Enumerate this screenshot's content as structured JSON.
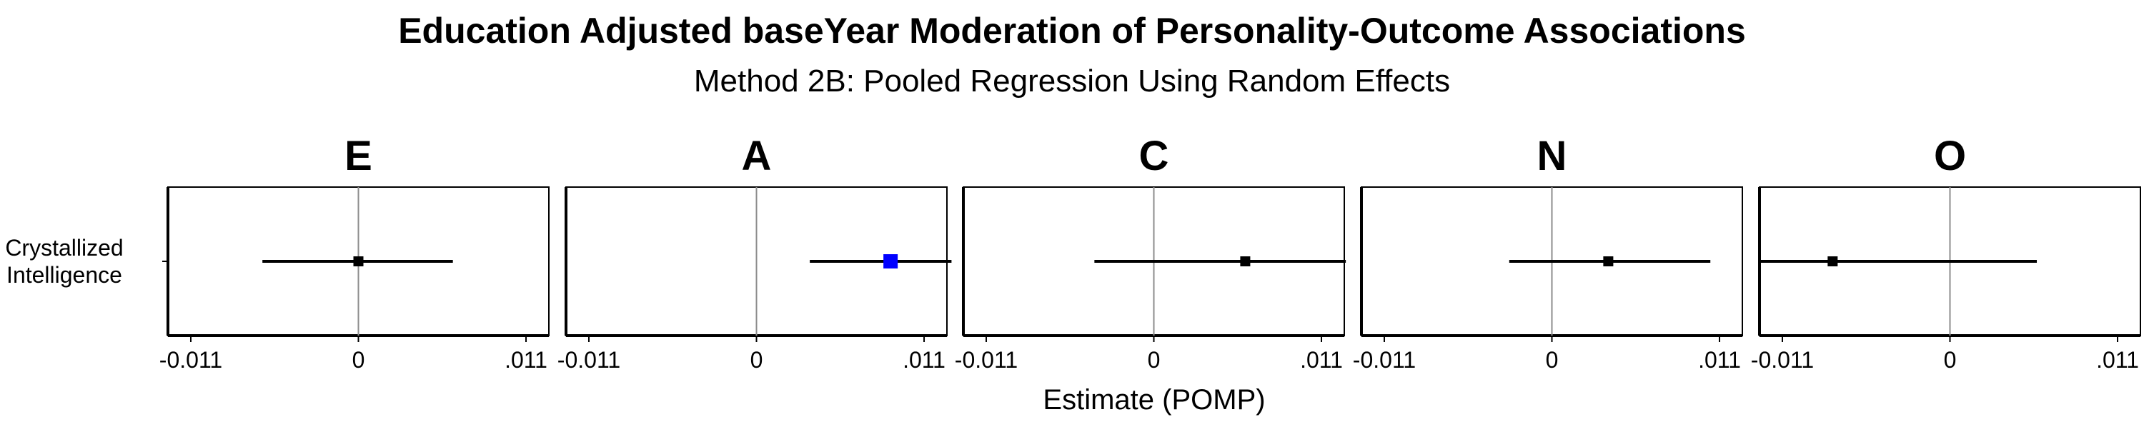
{
  "chart_data": {
    "type": "forest",
    "title": "Education Adjusted baseYear Moderation of Personality-Outcome Associations",
    "subtitle": "Method 2B: Pooled Regression Using Random Effects",
    "xlabel": "Estimate (POMP)",
    "ylabel": "",
    "y_category": "Crystallized\nIntelligence",
    "xlim": [
      -0.0125,
      0.0125
    ],
    "xticks": [
      -0.011,
      0,
      0.011
    ],
    "xtick_labels": [
      "-0.011",
      "0",
      ".011"
    ],
    "reference_line": 0,
    "grid": false,
    "panels": [
      {
        "facet": "E",
        "estimate": 0.0,
        "ci_low": -0.0063,
        "ci_high": 0.0062,
        "significant": false
      },
      {
        "facet": "A",
        "estimate": 0.0088,
        "ci_low": 0.0035,
        "ci_high": 0.0128,
        "significant": true
      },
      {
        "facet": "C",
        "estimate": 0.006,
        "ci_low": -0.0039,
        "ci_high": 0.0126,
        "significant": false
      },
      {
        "facet": "N",
        "estimate": 0.0037,
        "ci_low": -0.0028,
        "ci_high": 0.0104,
        "significant": false
      },
      {
        "facet": "O",
        "estimate": -0.0077,
        "ci_low": -0.0125,
        "ci_high": 0.0057,
        "significant": false
      }
    ],
    "colors": {
      "significant": "#0000ff",
      "nonsignificant": "#000000",
      "reference_line": "#8c8c8c",
      "panel_border": "#000000"
    }
  }
}
